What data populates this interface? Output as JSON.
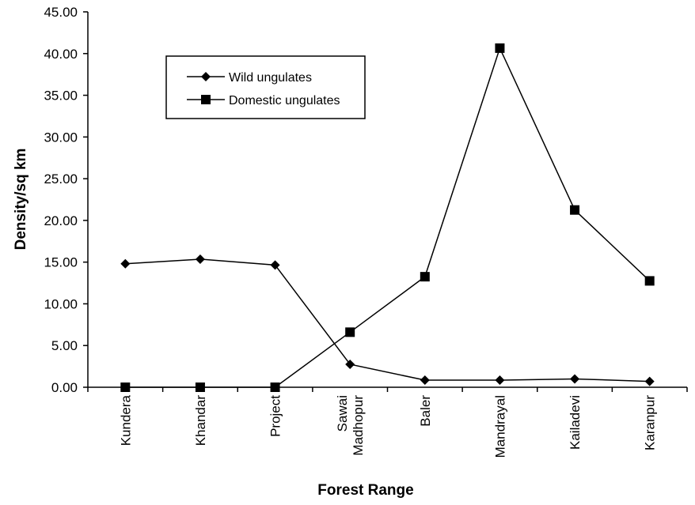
{
  "chart_data": {
    "type": "line",
    "xlabel": "Forest Range",
    "ylabel": "Density/sq km",
    "ylim": [
      0,
      45
    ],
    "yticks": [
      "0.00",
      "5.00",
      "10.00",
      "15.00",
      "20.00",
      "25.00",
      "30.00",
      "35.00",
      "40.00",
      "45.00"
    ],
    "categories": [
      [
        "Kundera"
      ],
      [
        "Khandar"
      ],
      [
        "Project"
      ],
      [
        "Sawai",
        "Madhopur"
      ],
      [
        "Baler"
      ],
      [
        "Mandrayal"
      ],
      [
        "Kailadevi"
      ],
      [
        "Karanpur"
      ]
    ],
    "legend_position": "top-left",
    "grid": false,
    "series": [
      {
        "name": "Wild ungulates",
        "marker": "diamond",
        "color": "#000000",
        "values": [
          14.8,
          15.35,
          14.65,
          2.75,
          0.85,
          0.85,
          1.0,
          0.7
        ]
      },
      {
        "name": "Domestic ungulates",
        "marker": "square",
        "color": "#000000",
        "values": [
          0.0,
          0.0,
          0.0,
          6.6,
          13.25,
          40.65,
          21.25,
          12.75
        ]
      }
    ]
  }
}
